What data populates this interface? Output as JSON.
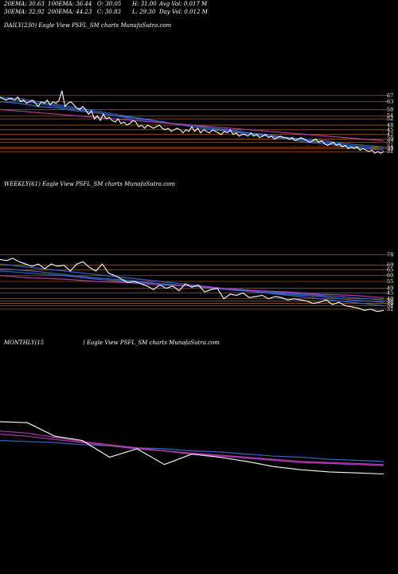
{
  "header": {
    "ema20": "20EMA: 30.63",
    "ema100": "100EMA: 36.44",
    "open": "O: 30.05",
    "high": "H: 31.00",
    "avgvol": "Avg Vol: 0.017  M",
    "ema30": "30EMA: 32.92",
    "ema200": "200EMA: 44.23",
    "close": "C: 30.83",
    "low": "L: 29.30",
    "dayvol": "Day Vol: 0.012  M"
  },
  "colors": {
    "background": "#000000",
    "price": "#ffffff",
    "ema": "#3a6fd8",
    "sma": "#c040c0",
    "level": "#a0581c"
  },
  "chart_data": [
    {
      "type": "line",
      "title": "DAILY(230) Eagle  View  PSFL_SM charts MunafaSutra.com",
      "yticks": [
        "67",
        "63",
        "58",
        "54",
        "52",
        "48",
        "45",
        "42",
        "39",
        "37",
        "34",
        "33",
        "31"
      ],
      "ylim": [
        26,
        72
      ],
      "series": [
        {
          "role": "price",
          "values": [
            66,
            65,
            64,
            65,
            65,
            64,
            66,
            63,
            64,
            62,
            63,
            64,
            62,
            60,
            63,
            62,
            64,
            61,
            63,
            62,
            64,
            70,
            60,
            62,
            63,
            61,
            59,
            58,
            60,
            58,
            55,
            57,
            52,
            54,
            51,
            55,
            52,
            53,
            51,
            50,
            52,
            49,
            50,
            48,
            49,
            51,
            50,
            47,
            48,
            46,
            48,
            47,
            46,
            47,
            48,
            46,
            45,
            46,
            44,
            45,
            46,
            45,
            43,
            45,
            44,
            47,
            44,
            46,
            43,
            45,
            44,
            43,
            45,
            44,
            43,
            42,
            44,
            43,
            45,
            42,
            43,
            41,
            42,
            42,
            41,
            43,
            41,
            42,
            40,
            41,
            42,
            40,
            41,
            39,
            40,
            41,
            40,
            40,
            39,
            40,
            38,
            39,
            40,
            39,
            38,
            37,
            38,
            39,
            37,
            38,
            36,
            35,
            36,
            37,
            35,
            36,
            34,
            35,
            33,
            34,
            33,
            34,
            32,
            33,
            32,
            31,
            32,
            30,
            31,
            30,
            31
          ]
        },
        {
          "role": "ema",
          "values": [
            66,
            65,
            63,
            61,
            59,
            57,
            55,
            53,
            51,
            49,
            47,
            45,
            44,
            42,
            41,
            39,
            37,
            36,
            34,
            33,
            32
          ]
        },
        {
          "role": "ema",
          "values": [
            65,
            64,
            62,
            60,
            58,
            56,
            54,
            53,
            51,
            49,
            48,
            46,
            44,
            43,
            41,
            40,
            38,
            37,
            35,
            34,
            33
          ]
        },
        {
          "role": "ema",
          "values": [
            63,
            62,
            60,
            59,
            57,
            56,
            54,
            52,
            51,
            49,
            48,
            46,
            45,
            43,
            42,
            40,
            39,
            38,
            36,
            35,
            34
          ]
        },
        {
          "role": "sma",
          "values": [
            58,
            57,
            56,
            55,
            54,
            53,
            52,
            51,
            50,
            49,
            48,
            47,
            46,
            45,
            44,
            43,
            42,
            41,
            40,
            39,
            38
          ]
        }
      ]
    },
    {
      "type": "line",
      "title": "WEEKLY(61) Eagle  View  PSFL_SM charts MunafaSutra.com",
      "yticks": [
        "78",
        "69",
        "65",
        "60",
        "55",
        "49",
        "45",
        "40",
        "38",
        "36",
        "34",
        "31"
      ],
      "ylim": [
        24,
        86
      ],
      "series": [
        {
          "role": "price",
          "values": [
            74,
            73,
            75,
            72,
            70,
            68,
            70,
            66,
            70,
            68,
            69,
            64,
            70,
            72,
            67,
            64,
            70,
            62,
            60,
            57,
            54,
            55,
            53,
            51,
            48,
            52,
            49,
            51,
            47,
            53,
            50,
            52,
            46,
            48,
            49,
            40,
            44,
            43,
            45,
            41,
            42,
            43,
            40,
            42,
            41,
            39,
            40,
            39,
            38,
            36,
            37,
            39,
            35,
            37,
            34,
            33,
            32,
            30,
            31,
            29,
            30
          ]
        },
        {
          "role": "ema",
          "values": [
            70,
            67,
            64,
            61,
            58,
            55,
            52,
            49,
            46,
            43,
            40,
            37,
            34
          ]
        },
        {
          "role": "ema",
          "values": [
            66,
            64,
            61,
            58,
            56,
            53,
            51,
            48,
            46,
            44,
            42,
            39,
            37
          ]
        },
        {
          "role": "ema",
          "values": [
            64,
            62,
            60,
            57,
            55,
            53,
            51,
            49,
            47,
            45,
            43,
            41,
            39
          ]
        },
        {
          "role": "sma",
          "values": [
            60,
            58,
            57,
            55,
            54,
            52,
            51,
            49,
            47,
            46,
            44,
            43,
            41
          ]
        }
      ]
    },
    {
      "type": "line",
      "title_left": "MONTHLY(15",
      "title_right": ") Eagle  View  PSFL_SM charts MunafaSutra.com",
      "ylim": [
        20,
        100
      ],
      "series": [
        {
          "role": "price",
          "values": [
            78,
            77,
            64,
            60,
            44,
            52,
            37,
            47,
            44,
            40,
            35,
            32,
            30,
            29,
            28
          ]
        },
        {
          "role": "ema",
          "values": [
            60,
            59,
            58,
            56,
            55,
            53,
            52,
            50,
            49,
            47,
            45,
            44,
            42,
            41,
            40
          ]
        },
        {
          "role": "sma",
          "values": [
            69,
            67,
            63,
            59,
            56,
            53,
            50,
            47,
            45,
            43,
            41,
            39,
            38,
            37,
            36
          ]
        },
        {
          "role": "sma",
          "values": [
            66,
            64,
            61,
            58,
            55,
            52,
            50,
            48,
            46,
            44,
            42,
            40,
            39,
            38,
            37
          ]
        }
      ]
    }
  ]
}
